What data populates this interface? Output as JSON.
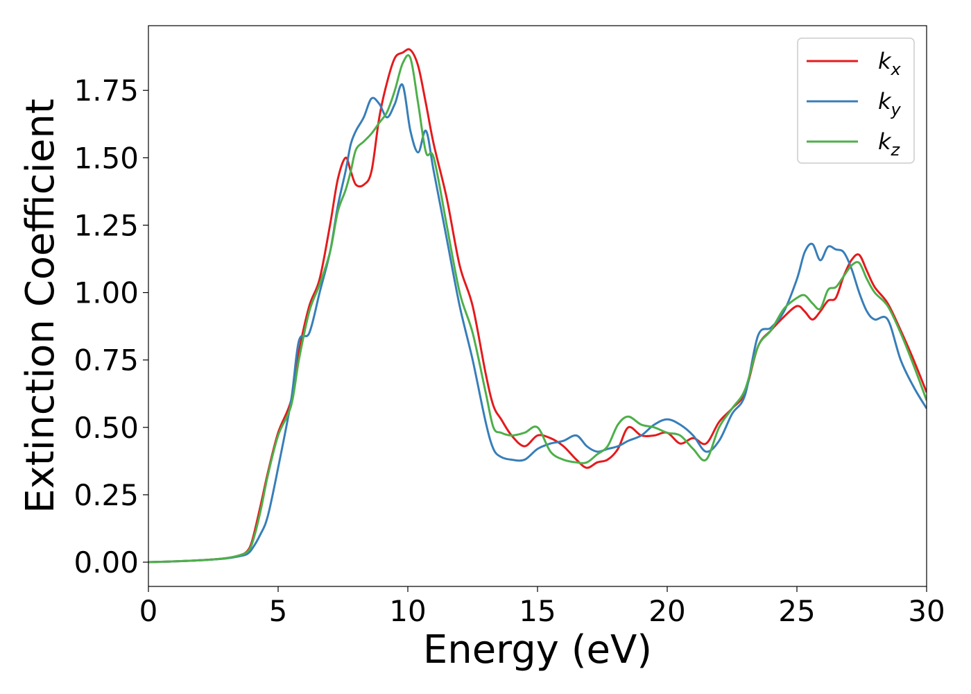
{
  "chart_data": {
    "type": "line",
    "title": "",
    "xlabel": "Energy (eV)",
    "ylabel": "Extinction Coefficient",
    "xlim": [
      0,
      30
    ],
    "ylim": [
      -0.09,
      1.99
    ],
    "xticks": [
      0,
      5,
      10,
      15,
      20,
      25,
      30
    ],
    "xtick_labels": [
      "0",
      "5",
      "10",
      "15",
      "20",
      "25",
      "30"
    ],
    "yticks": [
      0.0,
      0.25,
      0.5,
      0.75,
      1.0,
      1.25,
      1.5,
      1.75
    ],
    "ytick_labels": [
      "0.00",
      "0.25",
      "0.50",
      "0.75",
      "1.00",
      "1.25",
      "1.50",
      "1.75"
    ],
    "grid": false,
    "legend_position": "top-right",
    "series": [
      {
        "name": "x",
        "color": "#e41a1c",
        "x": [
          0,
          1,
          2,
          3,
          3.5,
          3.8,
          4.0,
          4.3,
          4.6,
          5.0,
          5.5,
          5.8,
          6.2,
          6.6,
          7.0,
          7.3,
          7.6,
          7.8,
          8.0,
          8.3,
          8.6,
          8.9,
          9.2,
          9.5,
          9.8,
          10.1,
          10.4,
          10.7,
          11.0,
          11.5,
          12.0,
          12.5,
          13.0,
          13.3,
          13.6,
          14.0,
          14.5,
          15.0,
          15.5,
          16.0,
          16.5,
          16.9,
          17.3,
          17.7,
          18.1,
          18.5,
          19.0,
          19.5,
          20.0,
          20.5,
          21.0,
          21.5,
          22.0,
          22.5,
          23.0,
          23.5,
          24.0,
          24.5,
          25.0,
          25.3,
          25.6,
          25.9,
          26.2,
          26.5,
          26.8,
          27.1,
          27.4,
          27.7,
          28.0,
          28.5,
          29.0,
          29.5,
          30.0
        ],
        "y": [
          0.0,
          0.003,
          0.007,
          0.015,
          0.025,
          0.04,
          0.08,
          0.2,
          0.33,
          0.48,
          0.6,
          0.78,
          0.95,
          1.05,
          1.25,
          1.42,
          1.5,
          1.45,
          1.4,
          1.4,
          1.45,
          1.65,
          1.78,
          1.87,
          1.89,
          1.9,
          1.84,
          1.7,
          1.55,
          1.35,
          1.1,
          0.95,
          0.7,
          0.58,
          0.53,
          0.47,
          0.43,
          0.47,
          0.46,
          0.43,
          0.38,
          0.35,
          0.37,
          0.38,
          0.42,
          0.5,
          0.47,
          0.47,
          0.48,
          0.44,
          0.46,
          0.44,
          0.52,
          0.57,
          0.63,
          0.8,
          0.86,
          0.91,
          0.95,
          0.93,
          0.9,
          0.93,
          0.97,
          0.98,
          1.06,
          1.12,
          1.14,
          1.08,
          1.02,
          0.96,
          0.86,
          0.75,
          0.63
        ]
      },
      {
        "name": "y",
        "color": "#377eb8",
        "x": [
          0,
          1,
          2,
          3,
          3.5,
          3.8,
          4.0,
          4.3,
          4.6,
          5.0,
          5.5,
          5.8,
          6.2,
          6.6,
          7.0,
          7.3,
          7.6,
          7.8,
          8.0,
          8.3,
          8.6,
          8.9,
          9.2,
          9.5,
          9.8,
          10.1,
          10.4,
          10.7,
          11.0,
          11.5,
          12.0,
          12.5,
          13.0,
          13.3,
          13.6,
          14.0,
          14.5,
          15.0,
          15.5,
          16.0,
          16.5,
          16.9,
          17.3,
          17.7,
          18.1,
          18.5,
          19.0,
          19.5,
          20.0,
          20.5,
          21.0,
          21.5,
          22.0,
          22.5,
          23.0,
          23.5,
          24.0,
          24.5,
          25.0,
          25.3,
          25.6,
          25.9,
          26.2,
          26.5,
          26.8,
          27.1,
          27.4,
          27.7,
          28.0,
          28.5,
          29.0,
          29.5,
          30.0
        ],
        "y": [
          0.0,
          0.003,
          0.007,
          0.014,
          0.022,
          0.03,
          0.05,
          0.1,
          0.17,
          0.35,
          0.6,
          0.82,
          0.85,
          1.0,
          1.15,
          1.32,
          1.45,
          1.55,
          1.6,
          1.65,
          1.72,
          1.7,
          1.65,
          1.7,
          1.77,
          1.6,
          1.52,
          1.6,
          1.45,
          1.2,
          0.95,
          0.75,
          0.52,
          0.42,
          0.39,
          0.38,
          0.38,
          0.42,
          0.44,
          0.45,
          0.47,
          0.43,
          0.41,
          0.42,
          0.43,
          0.45,
          0.47,
          0.51,
          0.53,
          0.51,
          0.47,
          0.41,
          0.45,
          0.55,
          0.62,
          0.84,
          0.87,
          0.93,
          1.05,
          1.15,
          1.18,
          1.12,
          1.17,
          1.16,
          1.15,
          1.09,
          1.0,
          0.93,
          0.9,
          0.9,
          0.75,
          0.65,
          0.57
        ]
      },
      {
        "name": "z",
        "color": "#4daf4a",
        "x": [
          0,
          1,
          2,
          3,
          3.5,
          3.8,
          4.0,
          4.3,
          4.6,
          5.0,
          5.5,
          5.8,
          6.2,
          6.6,
          7.0,
          7.3,
          7.6,
          7.8,
          8.0,
          8.3,
          8.6,
          8.9,
          9.2,
          9.5,
          9.8,
          10.1,
          10.4,
          10.7,
          11.0,
          11.5,
          12.0,
          12.5,
          13.0,
          13.3,
          13.6,
          14.0,
          14.5,
          15.0,
          15.5,
          16.0,
          16.5,
          16.9,
          17.3,
          17.7,
          18.1,
          18.5,
          19.0,
          19.5,
          20.0,
          20.5,
          21.0,
          21.5,
          22.0,
          22.5,
          23.0,
          23.5,
          24.0,
          24.5,
          25.0,
          25.3,
          25.6,
          25.9,
          26.2,
          26.5,
          26.8,
          27.1,
          27.4,
          27.7,
          28.0,
          28.5,
          29.0,
          29.5,
          30.0
        ],
        "y": [
          0.0,
          0.003,
          0.007,
          0.015,
          0.025,
          0.038,
          0.07,
          0.18,
          0.32,
          0.47,
          0.58,
          0.75,
          0.93,
          1.03,
          1.15,
          1.3,
          1.38,
          1.45,
          1.53,
          1.56,
          1.59,
          1.63,
          1.67,
          1.75,
          1.85,
          1.87,
          1.7,
          1.52,
          1.5,
          1.25,
          1.0,
          0.85,
          0.63,
          0.5,
          0.48,
          0.47,
          0.48,
          0.5,
          0.41,
          0.38,
          0.37,
          0.37,
          0.4,
          0.43,
          0.51,
          0.54,
          0.51,
          0.5,
          0.48,
          0.47,
          0.42,
          0.38,
          0.5,
          0.57,
          0.64,
          0.8,
          0.86,
          0.94,
          0.98,
          0.99,
          0.96,
          0.94,
          1.01,
          1.02,
          1.06,
          1.1,
          1.11,
          1.05,
          1.0,
          0.95,
          0.85,
          0.73,
          0.6
        ]
      }
    ]
  }
}
